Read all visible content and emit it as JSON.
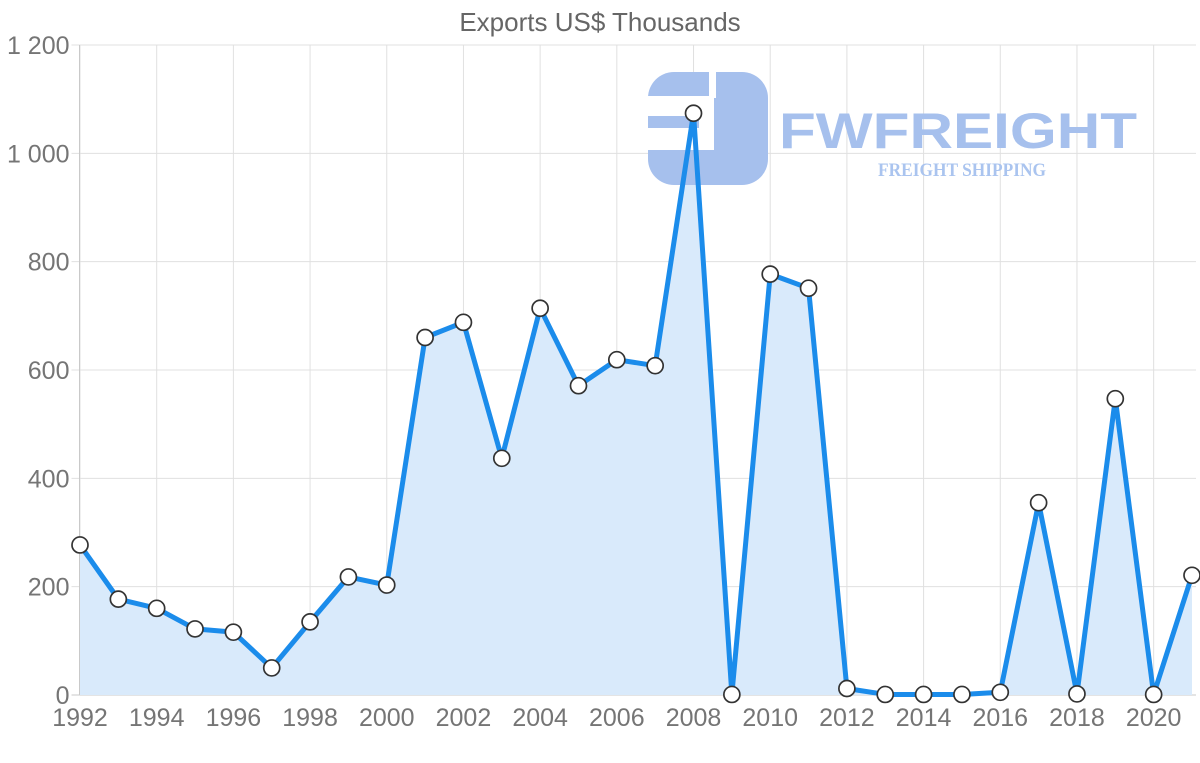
{
  "chart": {
    "title": "Exports US$ Thousands"
  },
  "watermark": {
    "brand": "FWFREIGHT",
    "tagline": "FREIGHT SHIPPING",
    "color": "#a6c0ed"
  },
  "chart_data": {
    "type": "area",
    "title": "Exports US$ Thousands",
    "xlabel": "",
    "ylabel": "",
    "x": [
      1992,
      1993,
      1994,
      1995,
      1996,
      1997,
      1998,
      1999,
      2000,
      2001,
      2002,
      2003,
      2004,
      2005,
      2006,
      2007,
      2008,
      2009,
      2010,
      2011,
      2012,
      2013,
      2014,
      2015,
      2016,
      2017,
      2018,
      2019,
      2020,
      2021
    ],
    "values": [
      277,
      177,
      160,
      122,
      116,
      50,
      135,
      218,
      203,
      660,
      688,
      437,
      714,
      571,
      619,
      608,
      1074,
      1,
      777,
      751,
      12,
      1,
      1,
      1,
      5,
      355,
      2,
      547,
      1,
      221
    ],
    "ylim": [
      0,
      1200
    ],
    "y_ticks": [
      0,
      200,
      400,
      600,
      800,
      1000,
      1200
    ],
    "y_tick_labels": [
      "0",
      "200",
      "400",
      "600",
      "800",
      "1 000",
      "1 200"
    ],
    "x_tick_years": [
      1992,
      1994,
      1996,
      1998,
      2000,
      2002,
      2004,
      2006,
      2008,
      2010,
      2012,
      2014,
      2016,
      2018,
      2020
    ],
    "grid": true,
    "legend": false,
    "colors": {
      "line": "#1b8ceb",
      "area_fill": "#d9eafb",
      "grid": "#e0e0e0",
      "axis": "#c9c9c9",
      "tick_label": "#757575",
      "title": "#666666",
      "marker_fill": "#ffffff",
      "marker_stroke": "#333333"
    }
  }
}
